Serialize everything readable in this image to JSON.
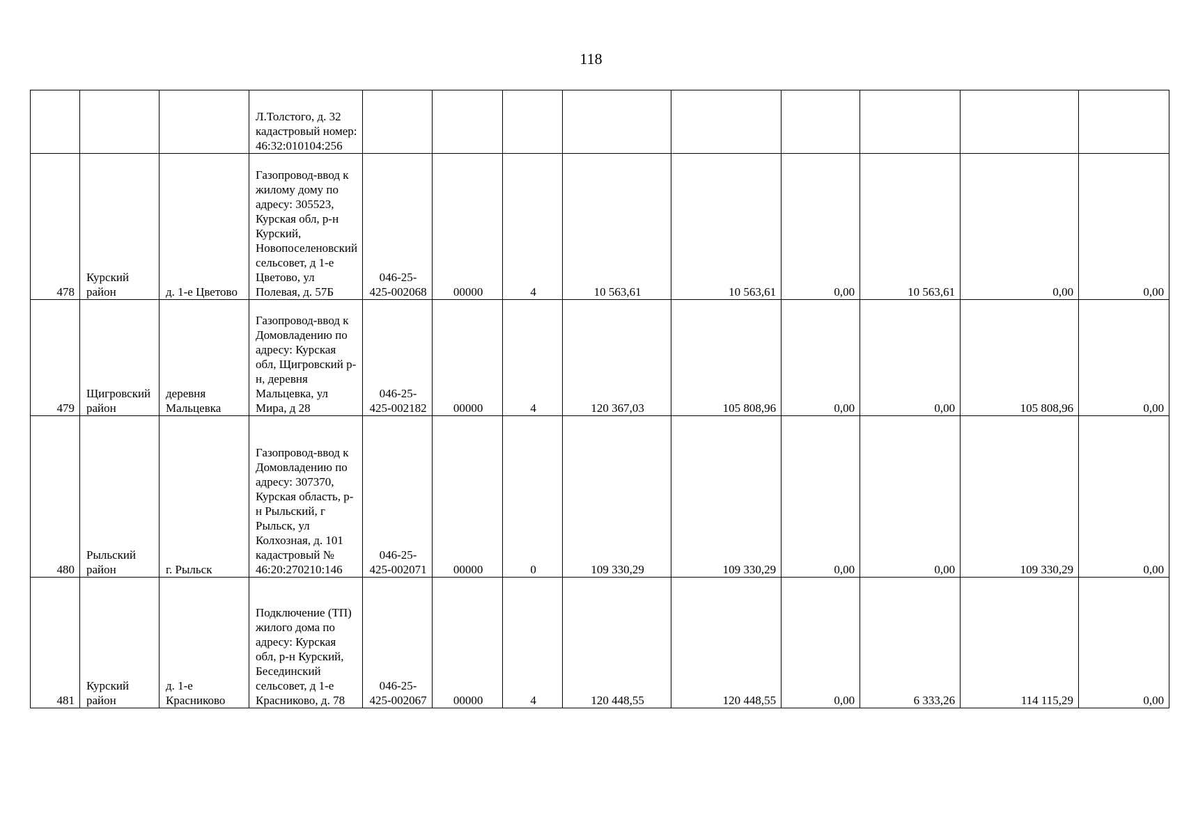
{
  "page_number": "118",
  "rows": [
    {
      "num": "",
      "district": "",
      "locality": "",
      "object": "Л.Толстого, д. 32 кадастровый номер: 46:32:010104:256",
      "code": "",
      "oktmo": "",
      "cat": "",
      "v1": "",
      "v2": "",
      "v3": "",
      "v4": "",
      "v5": "",
      "v6": ""
    },
    {
      "num": "478",
      "district": "Курский район",
      "locality": "д. 1-е Цветово",
      "object": "Газопровод-ввод к жилому дому по адресу: 305523, Курская обл, р-н Курский, Новопоселеновский сельсовет, д 1-е Цветово, ул Полевая, д. 57Б",
      "code": "046-25-425-002068",
      "oktmo": "00000",
      "cat": "4",
      "v1": "10 563,61",
      "v2": "10 563,61",
      "v3": "0,00",
      "v4": "10 563,61",
      "v5": "0,00",
      "v6": "0,00"
    },
    {
      "num": "479",
      "district": "Щигровский район",
      "locality": "деревня Мальцевка",
      "object": "Газопровод-ввод к Домовладению по адресу: Курская обл, Щигровский р-н, деревня Мальцевка, ул Мира, д 28",
      "code": "046-25-425-002182",
      "oktmo": "00000",
      "cat": "4",
      "v1": "120 367,03",
      "v2": "105 808,96",
      "v3": "0,00",
      "v4": "0,00",
      "v5": "105 808,96",
      "v6": "0,00"
    },
    {
      "num": "480",
      "district": "Рыльский район",
      "locality": "г. Рыльск",
      "object": "Газопровод-ввод к Домовладению по адресу: 307370, Курская область, р-н Рыльский, г Рыльск, ул Колхозная, д. 101 кадастровый № 46:20:270210:146",
      "code": "046-25-425-002071",
      "oktmo": "00000",
      "cat": "0",
      "v1": "109 330,29",
      "v2": "109 330,29",
      "v3": "0,00",
      "v4": "0,00",
      "v5": "109 330,29",
      "v6": "0,00"
    },
    {
      "num": "481",
      "district": "Курский район",
      "locality": "д. 1-е Красниково",
      "object": "Подключение (ТП) жилого дома по адресу: Курская обл, р-н Курский, Бесединский сельсовет, д 1-е Красниково, д. 78",
      "code": "046-25-425-002067",
      "oktmo": "00000",
      "cat": "4",
      "v1": "120 448,55",
      "v2": "120 448,55",
      "v3": "0,00",
      "v4": "6 333,26",
      "v5": "114 115,29",
      "v6": "0,00"
    }
  ]
}
